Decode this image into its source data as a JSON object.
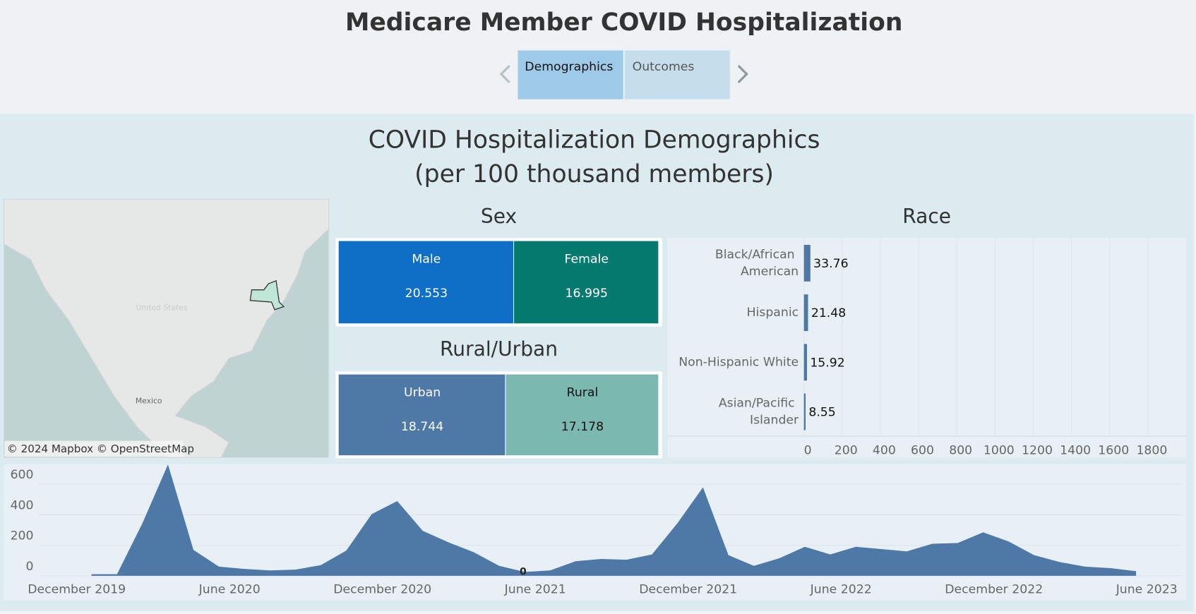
{
  "header": {
    "title": "Medicare Member COVID Hospitalization"
  },
  "tabs": [
    "Demographics",
    "Outcomes"
  ],
  "dashboard": {
    "title": [
      "COVID Hospitalization Demographics",
      "(per 100 thousand members)"
    ]
  },
  "map": {
    "attribution": "© 2024 Mapbox © OpenStreetMap",
    "labels": [
      "Mexico",
      "United States"
    ]
  },
  "chart_data": [
    {
      "type": "treemap",
      "title": "Sex",
      "categories": [
        "Male",
        "Female"
      ],
      "values": [
        20.553,
        16.995
      ],
      "colors": [
        "#0f6fc6",
        "#077a70"
      ],
      "text_colors": [
        "#ffffff",
        "#ffffff"
      ]
    },
    {
      "type": "treemap",
      "title": "Rural/Urban",
      "categories": [
        "Urban",
        "Rural"
      ],
      "values": [
        18.744,
        17.178
      ],
      "colors": [
        "#4e79a7",
        "#7ab8b0"
      ],
      "text_colors": [
        "#ffffff",
        "#111111"
      ]
    },
    {
      "type": "hbar",
      "title": "Race",
      "categories": [
        "Black/African American",
        "Hispanic",
        "Non-Hispanic White",
        "Asian/Pacific Islander"
      ],
      "values": [
        33.76,
        21.48,
        15.92,
        8.55
      ],
      "color": "#4e79a7",
      "xlim": [
        0,
        2000
      ],
      "xticks": [
        0,
        200,
        400,
        600,
        800,
        1000,
        1200,
        1400,
        1600,
        1800
      ],
      "grid": true
    },
    {
      "type": "area",
      "x": [
        "2020-01",
        "2020-02",
        "2020-03",
        "2020-04",
        "2020-05",
        "2020-06",
        "2020-07",
        "2020-08",
        "2020-09",
        "2020-10",
        "2020-11",
        "2020-12",
        "2021-01",
        "2021-02",
        "2021-03",
        "2021-04",
        "2021-05",
        "2021-06",
        "2021-07",
        "2021-08",
        "2021-09",
        "2021-10",
        "2021-11",
        "2021-12",
        "2022-01",
        "2022-02",
        "2022-03",
        "2022-04",
        "2022-05",
        "2022-06",
        "2022-07",
        "2022-08",
        "2022-09",
        "2022-10",
        "2022-11",
        "2022-12",
        "2023-01",
        "2023-02",
        "2023-03",
        "2023-04",
        "2023-05",
        "2023-06"
      ],
      "values": [
        10,
        10,
        345,
        730,
        170,
        60,
        45,
        35,
        40,
        70,
        165,
        405,
        490,
        295,
        220,
        155,
        65,
        25,
        35,
        95,
        110,
        105,
        140,
        345,
        580,
        135,
        65,
        115,
        190,
        140,
        190,
        175,
        160,
        210,
        215,
        285,
        225,
        135,
        90,
        60,
        50,
        30
      ],
      "color": "#4e79a7",
      "ylim": [
        0,
        750
      ],
      "yticks": [
        0,
        200,
        400,
        600
      ],
      "xticks": [
        {
          "value": "2019-12",
          "label": "December 2019"
        },
        {
          "value": "2020-06",
          "label": "June 2020"
        },
        {
          "value": "2020-12",
          "label": "December 2020"
        },
        {
          "value": "2021-06",
          "label": "June 2021"
        },
        {
          "value": "2021-12",
          "label": "December 2021"
        },
        {
          "value": "2022-06",
          "label": "June 2022"
        },
        {
          "value": "2022-12",
          "label": "December 2022"
        },
        {
          "value": "2023-06",
          "label": "June 2023"
        }
      ],
      "annotations": [
        {
          "x": "2021-06",
          "text": "0"
        }
      ],
      "grid": true
    }
  ]
}
